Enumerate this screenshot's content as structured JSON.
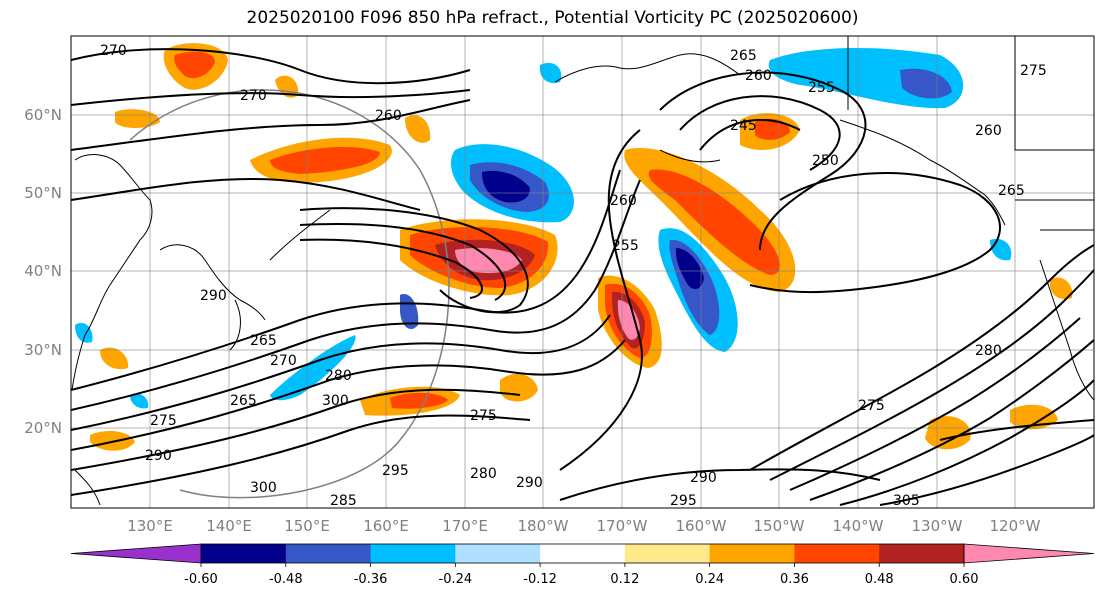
{
  "title": "2025020100 F096 850 hPa refract., Potential Vorticity PC (2025020600)",
  "lat_labels": [
    "60°N",
    "50°N",
    "40°N",
    "30°N",
    "20°N"
  ],
  "lon_labels": [
    "130°E",
    "140°E",
    "150°E",
    "160°E",
    "170°E",
    "180°W",
    "170°W",
    "160°W",
    "150°W",
    "140°W",
    "130°W",
    "120°W"
  ],
  "contour_labels": [
    "270",
    "270",
    "260",
    "265",
    "260",
    "255",
    "245",
    "250",
    "265",
    "260",
    "255",
    "260",
    "275",
    "265",
    "270",
    "265",
    "280",
    "275",
    "290",
    "300",
    "285",
    "295",
    "280",
    "290",
    "295",
    "290",
    "305",
    "300",
    "280",
    "275",
    "290",
    "275"
  ],
  "colorbar": {
    "tick_labels": [
      "-0.60",
      "-0.48",
      "-0.36",
      "-0.24",
      "-0.12",
      "0.12",
      "0.24",
      "0.36",
      "0.48",
      "0.60"
    ],
    "colors": [
      "#9932cc",
      "#00008b",
      "#3557c8",
      "#00bfff",
      "#b0e0ff",
      "#ffffff",
      "#ffe98a",
      "#ffa500",
      "#ff4500",
      "#b22222",
      "#ff88b0",
      "#ff88b0"
    ]
  },
  "fill_colors": {
    "neg1": "#b0e0ff",
    "neg2": "#00bfff",
    "neg3": "#3557c8",
    "neg4": "#00008b",
    "neg5": "#9932cc",
    "pos1": "#ffe98a",
    "pos2": "#ffa500",
    "pos3": "#ff4500",
    "pos4": "#b22222",
    "pos5": "#ff88b0"
  }
}
